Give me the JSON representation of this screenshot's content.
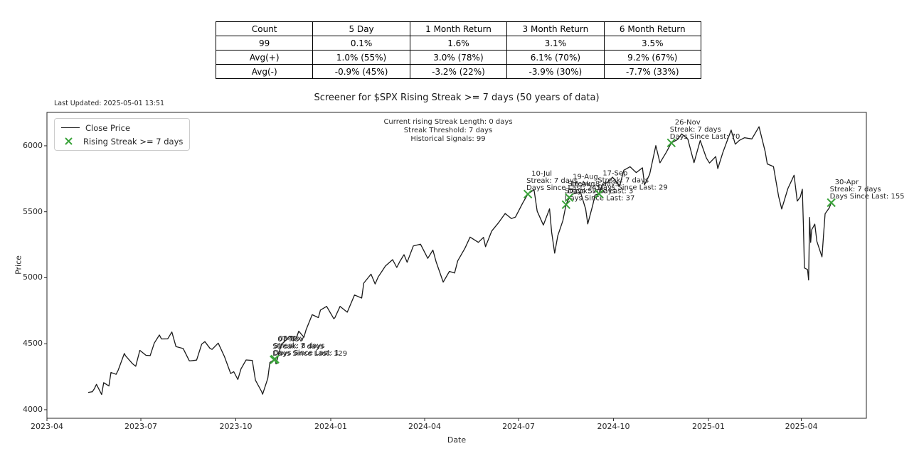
{
  "colors": {
    "close_line": "#1a1a1a",
    "signal": "#3aa33a",
    "spine": "#262626",
    "annotation_text": "#262626"
  },
  "summary_table": {
    "headers": [
      "Count",
      "5 Day",
      "1 Month Return",
      "3 Month Return",
      "6 Month Return"
    ],
    "rows": [
      [
        "99",
        "0.1%",
        "1.6%",
        "3.1%",
        "3.5%"
      ],
      [
        "Avg(+)",
        "1.0% (55%)",
        "3.0% (78%)",
        "6.1% (70%)",
        "9.2% (67%)"
      ],
      [
        "Avg(-)",
        "-0.9% (45%)",
        "-3.2% (22%)",
        "-3.9% (30%)",
        "-7.7% (33%)"
      ]
    ]
  },
  "chart_data": {
    "type": "line",
    "title": "Screener for $SPX Rising Streak >= 7 days (50 years of data)",
    "last_updated": "Last Updated: 2025-05-01 13:51",
    "xlabel": "Date",
    "ylabel": "Price",
    "legend": {
      "close_price": "Close Price",
      "rising_streak": "Rising Streak >= 7 days"
    },
    "info_lines": [
      "Current rising Streak Length: 0 days",
      "Streak Threshold: 7 days",
      "Historical Signals: 99"
    ],
    "axes": {
      "xlim": [
        "2023-04-01",
        "2025-06-03"
      ],
      "ylim": [
        3935,
        6253
      ],
      "x_ticks": [
        {
          "label": "2023-04",
          "date": "2023-04-01"
        },
        {
          "label": "2023-07",
          "date": "2023-07-01"
        },
        {
          "label": "2023-10",
          "date": "2023-10-01"
        },
        {
          "label": "2024-01",
          "date": "2024-01-01"
        },
        {
          "label": "2024-04",
          "date": "2024-04-01"
        },
        {
          "label": "2024-07",
          "date": "2024-07-01"
        },
        {
          "label": "2024-10",
          "date": "2024-10-01"
        },
        {
          "label": "2025-01",
          "date": "2025-01-01"
        },
        {
          "label": "2025-04",
          "date": "2025-04-01"
        }
      ],
      "y_ticks": [
        4000,
        4500,
        5000,
        5500,
        6000
      ],
      "grid": false
    },
    "series": [
      {
        "name": "Close Price",
        "points": [
          [
            "2023-05-11",
            4131
          ],
          [
            "2023-05-15",
            4136
          ],
          [
            "2023-05-17",
            4159
          ],
          [
            "2023-05-19",
            4192
          ],
          [
            "2023-05-24",
            4115
          ],
          [
            "2023-05-26",
            4205
          ],
          [
            "2023-05-31",
            4180
          ],
          [
            "2023-06-02",
            4282
          ],
          [
            "2023-06-07",
            4268
          ],
          [
            "2023-06-09",
            4299
          ],
          [
            "2023-06-15",
            4426
          ],
          [
            "2023-06-16",
            4410
          ],
          [
            "2023-06-23",
            4348
          ],
          [
            "2023-06-26",
            4329
          ],
          [
            "2023-06-30",
            4450
          ],
          [
            "2023-07-06",
            4412
          ],
          [
            "2023-07-10",
            4410
          ],
          [
            "2023-07-14",
            4505
          ],
          [
            "2023-07-19",
            4566
          ],
          [
            "2023-07-21",
            4536
          ],
          [
            "2023-07-27",
            4537
          ],
          [
            "2023-07-31",
            4589
          ],
          [
            "2023-08-04",
            4478
          ],
          [
            "2023-08-11",
            4464
          ],
          [
            "2023-08-17",
            4370
          ],
          [
            "2023-08-18",
            4370
          ],
          [
            "2023-08-24",
            4376
          ],
          [
            "2023-08-29",
            4497
          ],
          [
            "2023-09-01",
            4516
          ],
          [
            "2023-09-06",
            4465
          ],
          [
            "2023-09-08",
            4457
          ],
          [
            "2023-09-14",
            4505
          ],
          [
            "2023-09-20",
            4402
          ],
          [
            "2023-09-26",
            4274
          ],
          [
            "2023-09-29",
            4288
          ],
          [
            "2023-10-03",
            4229
          ],
          [
            "2023-10-06",
            4309
          ],
          [
            "2023-10-11",
            4377
          ],
          [
            "2023-10-17",
            4373
          ],
          [
            "2023-10-20",
            4224
          ],
          [
            "2023-10-26",
            4137
          ],
          [
            "2023-10-27",
            4117
          ],
          [
            "2023-11-01",
            4238
          ],
          [
            "2023-11-03",
            4358
          ],
          [
            "2023-11-07",
            4378
          ],
          [
            "2023-11-08",
            4383
          ],
          [
            "2023-11-09",
            4347
          ],
          [
            "2023-11-14",
            4496
          ],
          [
            "2023-11-17",
            4514
          ],
          [
            "2023-11-22",
            4557
          ],
          [
            "2023-11-29",
            4550
          ],
          [
            "2023-12-01",
            4595
          ],
          [
            "2023-12-06",
            4549
          ],
          [
            "2023-12-08",
            4604
          ],
          [
            "2023-12-14",
            4720
          ],
          [
            "2023-12-20",
            4698
          ],
          [
            "2023-12-22",
            4755
          ],
          [
            "2023-12-28",
            4783
          ],
          [
            "2024-01-04",
            4689
          ],
          [
            "2024-01-05",
            4697
          ],
          [
            "2024-01-10",
            4783
          ],
          [
            "2024-01-17",
            4739
          ],
          [
            "2024-01-24",
            4869
          ],
          [
            "2024-01-31",
            4846
          ],
          [
            "2024-02-02",
            4959
          ],
          [
            "2024-02-09",
            5027
          ],
          [
            "2024-02-13",
            4953
          ],
          [
            "2024-02-16",
            5006
          ],
          [
            "2024-02-23",
            5089
          ],
          [
            "2024-03-01",
            5137
          ],
          [
            "2024-03-05",
            5078
          ],
          [
            "2024-03-08",
            5124
          ],
          [
            "2024-03-12",
            5175
          ],
          [
            "2024-03-15",
            5117
          ],
          [
            "2024-03-21",
            5241
          ],
          [
            "2024-03-28",
            5254
          ],
          [
            "2024-04-04",
            5147
          ],
          [
            "2024-04-09",
            5210
          ],
          [
            "2024-04-12",
            5123
          ],
          [
            "2024-04-19",
            4967
          ],
          [
            "2024-04-25",
            5048
          ],
          [
            "2024-04-30",
            5036
          ],
          [
            "2024-05-03",
            5128
          ],
          [
            "2024-05-10",
            5223
          ],
          [
            "2024-05-15",
            5308
          ],
          [
            "2024-05-23",
            5268
          ],
          [
            "2024-05-28",
            5306
          ],
          [
            "2024-05-30",
            5235
          ],
          [
            "2024-06-05",
            5354
          ],
          [
            "2024-06-12",
            5421
          ],
          [
            "2024-06-18",
            5487
          ],
          [
            "2024-06-24",
            5448
          ],
          [
            "2024-06-28",
            5460
          ],
          [
            "2024-07-05",
            5567
          ],
          [
            "2024-07-10",
            5634
          ],
          [
            "2024-07-16",
            5667
          ],
          [
            "2024-07-19",
            5505
          ],
          [
            "2024-07-25",
            5399
          ],
          [
            "2024-07-31",
            5522
          ],
          [
            "2024-08-02",
            5347
          ],
          [
            "2024-08-05",
            5186
          ],
          [
            "2024-08-08",
            5319
          ],
          [
            "2024-08-13",
            5434
          ],
          [
            "2024-08-16",
            5554
          ],
          [
            "2024-08-19",
            5608
          ],
          [
            "2024-08-23",
            5635
          ],
          [
            "2024-08-30",
            5648
          ],
          [
            "2024-09-04",
            5520
          ],
          [
            "2024-09-06",
            5408
          ],
          [
            "2024-09-11",
            5554
          ],
          [
            "2024-09-13",
            5626
          ],
          [
            "2024-09-17",
            5635
          ],
          [
            "2024-09-20",
            5703
          ],
          [
            "2024-09-25",
            5722
          ],
          [
            "2024-09-30",
            5762
          ],
          [
            "2024-10-07",
            5696
          ],
          [
            "2024-10-11",
            5815
          ],
          [
            "2024-10-17",
            5841
          ],
          [
            "2024-10-23",
            5797
          ],
          [
            "2024-10-29",
            5833
          ],
          [
            "2024-10-31",
            5705
          ],
          [
            "2024-11-05",
            5783
          ],
          [
            "2024-11-11",
            6001
          ],
          [
            "2024-11-15",
            5871
          ],
          [
            "2024-11-21",
            5949
          ],
          [
            "2024-11-26",
            6022
          ],
          [
            "2024-12-02",
            6047
          ],
          [
            "2024-12-06",
            6090
          ],
          [
            "2024-12-12",
            6051
          ],
          [
            "2024-12-18",
            5872
          ],
          [
            "2024-12-24",
            6040
          ],
          [
            "2024-12-30",
            5907
          ],
          [
            "2025-01-02",
            5869
          ],
          [
            "2025-01-08",
            5918
          ],
          [
            "2025-01-10",
            5827
          ],
          [
            "2025-01-15",
            5950
          ],
          [
            "2025-01-23",
            6119
          ],
          [
            "2025-01-27",
            6012
          ],
          [
            "2025-01-31",
            6041
          ],
          [
            "2025-02-05",
            6061
          ],
          [
            "2025-02-12",
            6052
          ],
          [
            "2025-02-19",
            6144
          ],
          [
            "2025-02-25",
            5955
          ],
          [
            "2025-02-27",
            5862
          ],
          [
            "2025-03-05",
            5843
          ],
          [
            "2025-03-10",
            5615
          ],
          [
            "2025-03-13",
            5521
          ],
          [
            "2025-03-19",
            5676
          ],
          [
            "2025-03-25",
            5777
          ],
          [
            "2025-03-28",
            5581
          ],
          [
            "2025-03-31",
            5612
          ],
          [
            "2025-04-02",
            5671
          ],
          [
            "2025-04-03",
            5396
          ],
          [
            "2025-04-04",
            5074
          ],
          [
            "2025-04-07",
            5062
          ],
          [
            "2025-04-08",
            4983
          ],
          [
            "2025-04-09",
            5457
          ],
          [
            "2025-04-10",
            5268
          ],
          [
            "2025-04-11",
            5363
          ],
          [
            "2025-04-14",
            5406
          ],
          [
            "2025-04-16",
            5276
          ],
          [
            "2025-04-21",
            5158
          ],
          [
            "2025-04-23",
            5376
          ],
          [
            "2025-04-24",
            5485
          ],
          [
            "2025-04-28",
            5529
          ],
          [
            "2025-04-30",
            5569
          ]
        ]
      }
    ],
    "signals": [
      {
        "label": "07-Nov",
        "date": "2023-11-07",
        "price": 4378,
        "streak": "Streak: 7 days",
        "since": "Days Since Last: 129"
      },
      {
        "label": "08-Nov",
        "date": "2023-11-08",
        "price": 4383,
        "streak": "Streak: 8 days",
        "since": "Days Since Last: 1"
      },
      {
        "label": "10-Jul",
        "date": "2024-07-10",
        "price": 5634,
        "streak": "Streak: 7 days",
        "since": "Days Since Last: 245"
      },
      {
        "label": "16-Aug",
        "date": "2024-08-16",
        "price": 5554,
        "streak": "Streak: 7 days",
        "since": "Days Since Last: 37"
      },
      {
        "label": "19-Aug",
        "date": "2024-08-19",
        "price": 5608,
        "streak": "Streak: 8 days",
        "since": "Days Since Last: 3"
      },
      {
        "label": "17-Sep",
        "date": "2024-09-17",
        "price": 5635,
        "streak": "Streak: 7 days",
        "since": "Days Since Last: 29"
      },
      {
        "label": "26-Nov",
        "date": "2024-11-26",
        "price": 6022,
        "streak": "Streak: 7 days",
        "since": "Days Since Last: 70"
      },
      {
        "label": "30-Apr",
        "date": "2025-04-30",
        "price": 5569,
        "streak": "Streak: 7 days",
        "since": "Days Since Last: 155"
      }
    ]
  }
}
